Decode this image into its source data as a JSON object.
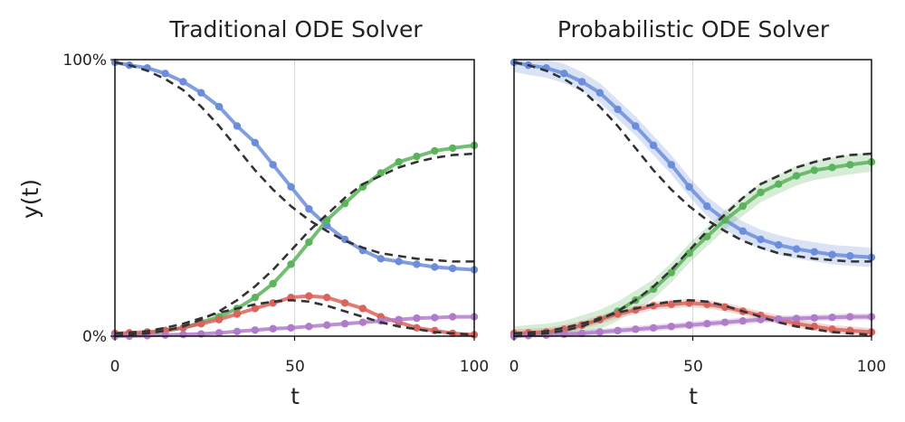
{
  "chart_data": [
    {
      "type": "line",
      "title": "Traditional ODE Solver",
      "xlabel": "t",
      "ylabel": "y(t)",
      "xlim": [
        0,
        100
      ],
      "ylim": [
        0,
        1
      ],
      "xticks": [
        "0",
        "50",
        "100"
      ],
      "yticks": [
        "0%",
        "100%"
      ],
      "x": [
        0,
        4,
        9,
        14,
        19,
        24,
        29,
        34,
        39,
        44,
        49,
        54,
        59,
        64,
        69,
        74,
        79,
        84,
        89,
        94,
        100
      ],
      "series": [
        {
          "color": "#6b8ddc",
          "values": [
            0.99,
            0.98,
            0.97,
            0.95,
            0.92,
            0.88,
            0.83,
            0.76,
            0.7,
            0.62,
            0.54,
            0.46,
            0.4,
            0.35,
            0.31,
            0.28,
            0.27,
            0.26,
            0.25,
            0.245,
            0.24
          ]
        },
        {
          "color": "#5bb35b",
          "values": [
            0,
            0.005,
            0.01,
            0.02,
            0.03,
            0.05,
            0.07,
            0.1,
            0.14,
            0.19,
            0.26,
            0.34,
            0.42,
            0.48,
            0.54,
            0.59,
            0.63,
            0.65,
            0.67,
            0.68,
            0.69
          ]
        },
        {
          "color": "#d9645c",
          "values": [
            0.01,
            0.012,
            0.015,
            0.02,
            0.03,
            0.045,
            0.06,
            0.08,
            0.1,
            0.12,
            0.14,
            0.145,
            0.14,
            0.12,
            0.1,
            0.07,
            0.05,
            0.03,
            0.02,
            0.01,
            0.005
          ]
        },
        {
          "color": "#b07cc9",
          "values": [
            0,
            0,
            0.002,
            0.004,
            0.006,
            0.008,
            0.012,
            0.017,
            0.022,
            0.027,
            0.03,
            0.035,
            0.04,
            0.045,
            0.05,
            0.055,
            0.06,
            0.065,
            0.067,
            0.07,
            0.07
          ]
        }
      ],
      "reference": [
        {
          "color": "#333333",
          "values": [
            0.99,
            0.98,
            0.96,
            0.93,
            0.89,
            0.83,
            0.76,
            0.68,
            0.6,
            0.53,
            0.47,
            0.42,
            0.38,
            0.345,
            0.32,
            0.3,
            0.29,
            0.28,
            0.275,
            0.27,
            0.27
          ]
        },
        {
          "color": "#333333",
          "values": [
            0,
            0.005,
            0.01,
            0.02,
            0.035,
            0.06,
            0.09,
            0.13,
            0.18,
            0.24,
            0.31,
            0.38,
            0.44,
            0.5,
            0.55,
            0.58,
            0.61,
            0.63,
            0.645,
            0.655,
            0.66
          ]
        },
        {
          "color": "#333333",
          "values": [
            0.01,
            0.013,
            0.018,
            0.03,
            0.045,
            0.065,
            0.085,
            0.1,
            0.115,
            0.125,
            0.13,
            0.125,
            0.11,
            0.09,
            0.07,
            0.05,
            0.035,
            0.025,
            0.015,
            0.01,
            0.005
          ]
        }
      ]
    },
    {
      "type": "line",
      "title": "Probabilistic ODE Solver",
      "xlabel": "t",
      "xlim": [
        0,
        100
      ],
      "ylim": [
        0,
        1
      ],
      "xticks": [
        "0",
        "50",
        "100"
      ],
      "x": [
        0,
        4,
        9,
        14,
        19,
        24,
        29,
        34,
        39,
        44,
        49,
        54,
        59,
        64,
        69,
        74,
        79,
        84,
        89,
        94,
        100
      ],
      "series": [
        {
          "color": "#6b8ddc",
          "band": 0.035,
          "values": [
            0.99,
            0.98,
            0.97,
            0.95,
            0.92,
            0.88,
            0.82,
            0.76,
            0.69,
            0.62,
            0.54,
            0.47,
            0.42,
            0.38,
            0.35,
            0.33,
            0.315,
            0.305,
            0.295,
            0.29,
            0.285
          ]
        },
        {
          "color": "#5bb35b",
          "band": 0.035,
          "values": [
            0,
            0.005,
            0.01,
            0.02,
            0.04,
            0.06,
            0.09,
            0.13,
            0.17,
            0.23,
            0.3,
            0.36,
            0.42,
            0.47,
            0.52,
            0.55,
            0.58,
            0.6,
            0.61,
            0.62,
            0.63
          ]
        },
        {
          "color": "#d9645c",
          "band": 0.015,
          "values": [
            0.01,
            0.012,
            0.015,
            0.025,
            0.04,
            0.06,
            0.08,
            0.095,
            0.11,
            0.115,
            0.12,
            0.115,
            0.105,
            0.09,
            0.075,
            0.06,
            0.045,
            0.035,
            0.025,
            0.02,
            0.015
          ]
        },
        {
          "color": "#b07cc9",
          "band": 0.012,
          "values": [
            0,
            0.002,
            0.004,
            0.007,
            0.01,
            0.015,
            0.02,
            0.025,
            0.03,
            0.035,
            0.04,
            0.045,
            0.05,
            0.055,
            0.06,
            0.062,
            0.064,
            0.066,
            0.068,
            0.07,
            0.07
          ]
        }
      ],
      "reference": [
        {
          "color": "#333333",
          "values": [
            0.99,
            0.98,
            0.96,
            0.93,
            0.89,
            0.83,
            0.76,
            0.68,
            0.6,
            0.53,
            0.47,
            0.42,
            0.38,
            0.345,
            0.32,
            0.3,
            0.29,
            0.28,
            0.275,
            0.27,
            0.27
          ]
        },
        {
          "color": "#333333",
          "values": [
            0,
            0.005,
            0.01,
            0.02,
            0.035,
            0.06,
            0.09,
            0.13,
            0.18,
            0.24,
            0.31,
            0.38,
            0.44,
            0.5,
            0.55,
            0.58,
            0.61,
            0.63,
            0.645,
            0.655,
            0.66
          ]
        },
        {
          "color": "#333333",
          "values": [
            0.01,
            0.013,
            0.018,
            0.03,
            0.045,
            0.065,
            0.085,
            0.1,
            0.115,
            0.125,
            0.13,
            0.125,
            0.11,
            0.09,
            0.07,
            0.05,
            0.035,
            0.025,
            0.015,
            0.01,
            0.005
          ]
        }
      ]
    }
  ]
}
